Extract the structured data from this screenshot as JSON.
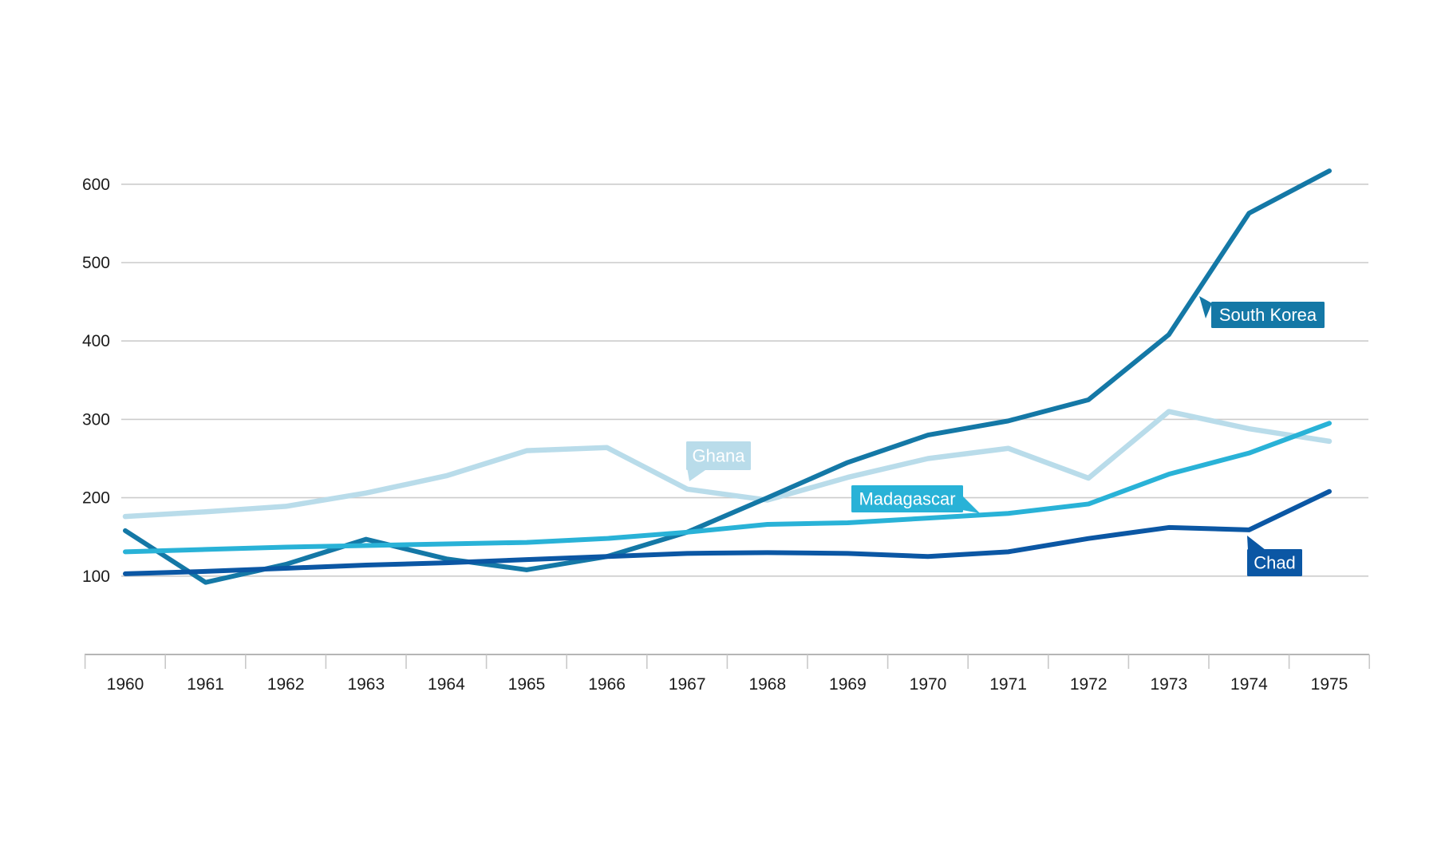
{
  "chart_data": {
    "type": "line",
    "x": [
      1960,
      1961,
      1962,
      1963,
      1964,
      1965,
      1966,
      1967,
      1968,
      1969,
      1970,
      1971,
      1972,
      1973,
      1974,
      1975
    ],
    "series": [
      {
        "name": "Ghana",
        "color": "#b9dcea",
        "values": [
          176,
          182,
          189,
          206,
          228,
          260,
          264,
          211,
          197,
          226,
          250,
          263,
          225,
          310,
          288,
          272
        ],
        "label": {
          "text": "Ghana",
          "anchor_year": 1967,
          "side": "above",
          "tail": "bottom-left"
        }
      },
      {
        "name": "South Korea",
        "color": "#1478a6",
        "values": [
          158,
          92,
          115,
          147,
          122,
          108,
          125,
          156,
          200,
          245,
          280,
          298,
          325,
          408,
          563,
          617
        ],
        "label": {
          "text": "South Korea",
          "anchor_year": 1973,
          "side": "right",
          "tail": "top-left"
        }
      },
      {
        "name": "Madagascar",
        "color": "#29b2d7",
        "values": [
          131,
          134,
          137,
          139,
          141,
          143,
          148,
          156,
          166,
          168,
          174,
          180,
          192,
          230,
          257,
          295
        ],
        "label": {
          "text": "Madagascar",
          "anchor_year": 1970,
          "side": "above",
          "tail": "bottom-right"
        }
      },
      {
        "name": "Chad",
        "color": "#0b57a4",
        "values": [
          103,
          106,
          110,
          114,
          117,
          121,
          125,
          129,
          130,
          129,
          125,
          131,
          148,
          162,
          159,
          208
        ],
        "label": {
          "text": "Chad",
          "anchor_year": 1974,
          "side": "below",
          "tail": "top-left"
        }
      }
    ],
    "title": "",
    "xlabel": "",
    "ylabel": "",
    "y_ticks": [
      100,
      200,
      300,
      400,
      500,
      600
    ],
    "x_tick_labels": [
      "1960",
      "1961",
      "1962",
      "1963",
      "1964",
      "1965",
      "1966",
      "1967",
      "1968",
      "1969",
      "1970",
      "1971",
      "1972",
      "1973",
      "1974",
      "1975"
    ],
    "ylim": [
      0,
      650
    ],
    "grid": "horizontal-only",
    "legend_position": "inline-callout-bubbles",
    "colors": {
      "gridline": "#cccccc",
      "axis_line": "#b5b5b5",
      "tick_mark": "#c9c9c9",
      "tick_text": "#1c1c1c",
      "bubble_text": "#ffffff"
    }
  }
}
